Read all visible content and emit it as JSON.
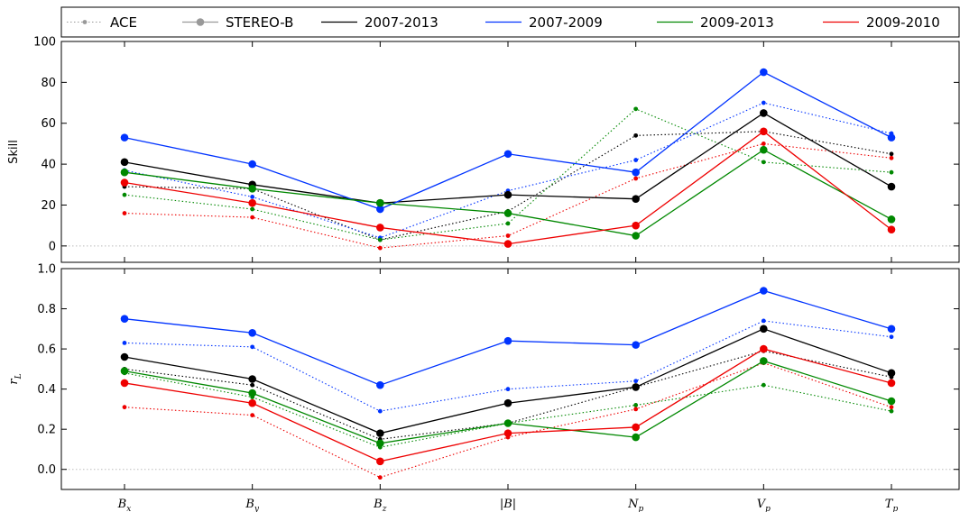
{
  "chart_data": {
    "type": "line",
    "categories": [
      "B_x",
      "B_y",
      "B_z",
      "|B|",
      "N_p",
      "V_p",
      "T_p"
    ],
    "legend": {
      "placement": "top",
      "entries": [
        {
          "label": "ACE",
          "style": "dotted-small-marker",
          "color": "#999999"
        },
        {
          "label": "STEREO-B",
          "style": "solid-large-marker",
          "color": "#999999"
        },
        {
          "label": "2007-2013",
          "color": "#000000"
        },
        {
          "label": "2007-2009",
          "color": "#0033ff"
        },
        {
          "label": "2009-2013",
          "color": "#008800"
        },
        {
          "label": "2009-2010",
          "color": "#ee0000"
        }
      ]
    },
    "panels": [
      {
        "ylabel": "Skill",
        "ylim": [
          -8,
          100
        ],
        "yticks": [
          0,
          20,
          40,
          60,
          80,
          100
        ],
        "tick_labels": [
          "0",
          "20",
          "40",
          "60",
          "80",
          "100"
        ],
        "zero_line": true,
        "series": [
          {
            "period": "2007-2013",
            "instrument": "ACE",
            "color": "#000000",
            "values": [
              29,
              28,
              3,
              17,
              54,
              56,
              45
            ]
          },
          {
            "period": "2007-2009",
            "instrument": "ACE",
            "color": "#0033ff",
            "values": [
              37,
              24,
              4,
              27,
              42,
              70,
              55
            ]
          },
          {
            "period": "2009-2013",
            "instrument": "ACE",
            "color": "#008800",
            "values": [
              25,
              18,
              3,
              11,
              67,
              41,
              36
            ]
          },
          {
            "period": "2009-2010",
            "instrument": "ACE",
            "color": "#ee0000",
            "values": [
              16,
              14,
              -1,
              5,
              33,
              50,
              43
            ]
          },
          {
            "period": "2007-2013",
            "instrument": "STEREO-B",
            "color": "#000000",
            "values": [
              41,
              30,
              21,
              25,
              23,
              65,
              29
            ]
          },
          {
            "period": "2007-2009",
            "instrument": "STEREO-B",
            "color": "#0033ff",
            "values": [
              53,
              40,
              18,
              45,
              36,
              85,
              53
            ]
          },
          {
            "period": "2009-2013",
            "instrument": "STEREO-B",
            "color": "#008800",
            "values": [
              36,
              28,
              21,
              16,
              5,
              47,
              13
            ]
          },
          {
            "period": "2009-2010",
            "instrument": "STEREO-B",
            "color": "#ee0000",
            "values": [
              31,
              21,
              9,
              1,
              10,
              56,
              8
            ]
          }
        ]
      },
      {
        "ylabel": "r_L",
        "ylim": [
          -0.1,
          1.0
        ],
        "yticks": [
          0.0,
          0.2,
          0.4,
          0.6,
          0.8,
          1.0
        ],
        "tick_labels": [
          "0.0",
          "0.2",
          "0.4",
          "0.6",
          "0.8",
          "1.0"
        ],
        "zero_line": true,
        "series": [
          {
            "period": "2007-2013",
            "instrument": "ACE",
            "color": "#000000",
            "values": [
              0.5,
              0.42,
              0.15,
              0.23,
              0.41,
              0.59,
              0.46
            ]
          },
          {
            "period": "2007-2009",
            "instrument": "ACE",
            "color": "#0033ff",
            "values": [
              0.63,
              0.61,
              0.29,
              0.4,
              0.44,
              0.74,
              0.66
            ]
          },
          {
            "period": "2009-2013",
            "instrument": "ACE",
            "color": "#008800",
            "values": [
              0.48,
              0.36,
              0.11,
              0.23,
              0.32,
              0.42,
              0.29
            ]
          },
          {
            "period": "2009-2010",
            "instrument": "ACE",
            "color": "#ee0000",
            "values": [
              0.31,
              0.27,
              -0.04,
              0.16,
              0.3,
              0.53,
              0.31
            ]
          },
          {
            "period": "2007-2013",
            "instrument": "STEREO-B",
            "color": "#000000",
            "values": [
              0.56,
              0.45,
              0.18,
              0.33,
              0.41,
              0.7,
              0.48
            ]
          },
          {
            "period": "2007-2009",
            "instrument": "STEREO-B",
            "color": "#0033ff",
            "values": [
              0.75,
              0.68,
              0.42,
              0.64,
              0.62,
              0.89,
              0.7
            ]
          },
          {
            "period": "2009-2013",
            "instrument": "STEREO-B",
            "color": "#008800",
            "values": [
              0.49,
              0.38,
              0.13,
              0.23,
              0.16,
              0.54,
              0.34
            ]
          },
          {
            "period": "2009-2010",
            "instrument": "STEREO-B",
            "color": "#ee0000",
            "values": [
              0.43,
              0.33,
              0.04,
              0.18,
              0.21,
              0.6,
              0.43
            ]
          }
        ]
      }
    ]
  }
}
